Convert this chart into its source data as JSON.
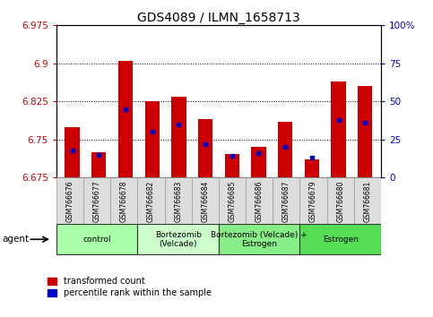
{
  "title": "GDS4089 / ILMN_1658713",
  "samples": [
    "GSM766676",
    "GSM766677",
    "GSM766678",
    "GSM766682",
    "GSM766683",
    "GSM766684",
    "GSM766685",
    "GSM766686",
    "GSM766687",
    "GSM766679",
    "GSM766680",
    "GSM766681"
  ],
  "transformed_counts": [
    6.775,
    6.725,
    6.905,
    6.825,
    6.835,
    6.79,
    6.722,
    6.735,
    6.785,
    6.71,
    6.865,
    6.855
  ],
  "percentile_ranks": [
    18,
    15,
    45,
    30,
    35,
    22,
    14,
    16,
    20,
    13,
    38,
    36
  ],
  "y_min": 6.675,
  "y_max": 6.975,
  "y_ticks": [
    6.675,
    6.75,
    6.825,
    6.9,
    6.975
  ],
  "right_y_ticks": [
    0,
    25,
    50,
    75,
    100
  ],
  "groups": [
    {
      "label": "control",
      "start": 0,
      "end": 3,
      "color": "#aaffaa"
    },
    {
      "label": "Bortezomib\n(Velcade)",
      "start": 3,
      "end": 6,
      "color": "#ccffcc"
    },
    {
      "label": "Bortezomib (Velcade) +\nEstrogen",
      "start": 6,
      "end": 9,
      "color": "#88ee88"
    },
    {
      "label": "Estrogen",
      "start": 9,
      "end": 12,
      "color": "#55dd55"
    }
  ],
  "bar_color": "#cc0000",
  "marker_color": "#0000cc",
  "bar_width": 0.55,
  "legend_red": "transformed count",
  "legend_blue": "percentile rank within the sample",
  "left_color": "#cc0000",
  "right_color": "#0000cc",
  "tick_label_color": "#000000",
  "group_label_font": 7,
  "sample_font": 6
}
